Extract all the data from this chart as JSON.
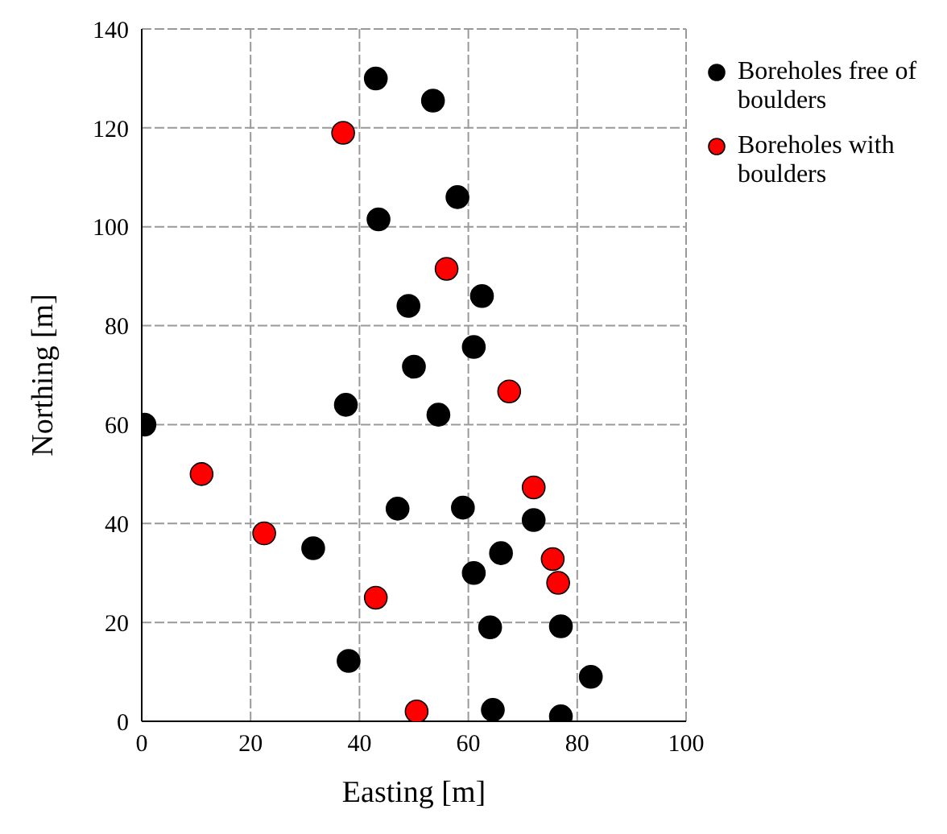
{
  "chart_data": {
    "type": "scatter",
    "xlabel": "Easting [m]",
    "ylabel": "Northing [m]",
    "xlim": [
      0,
      100
    ],
    "xticks": [
      0,
      20,
      40,
      60,
      80,
      100
    ],
    "ylim": [
      0,
      140
    ],
    "yticks": [
      0,
      20,
      40,
      60,
      80,
      100,
      120,
      140
    ],
    "grid": true,
    "legend": "right",
    "marker": "circle",
    "series": [
      {
        "name": "Boreholes free of boulders",
        "color": "#000000",
        "x": [
          43,
          53.5,
          58,
          43.5,
          62.5,
          49,
          61,
          50,
          37.5,
          54.5,
          0.5,
          47,
          59,
          72,
          31.5,
          66,
          61,
          64,
          77,
          38,
          82.5,
          64.5,
          77
        ],
        "values": [
          130,
          125.5,
          106,
          101.5,
          86,
          84,
          75.7,
          71.7,
          64,
          62,
          60,
          43,
          43.2,
          40.7,
          35,
          34,
          30,
          19,
          19.2,
          12.2,
          9,
          2.3,
          1
        ]
      },
      {
        "name": "Boreholes with boulders",
        "color": "#ff0000",
        "x": [
          37,
          56,
          67.5,
          11,
          72,
          22.5,
          75.5,
          76.5,
          43,
          50.5
        ],
        "values": [
          119,
          91.5,
          66.7,
          50,
          47.3,
          38,
          32.8,
          28,
          25,
          2
        ]
      }
    ]
  }
}
